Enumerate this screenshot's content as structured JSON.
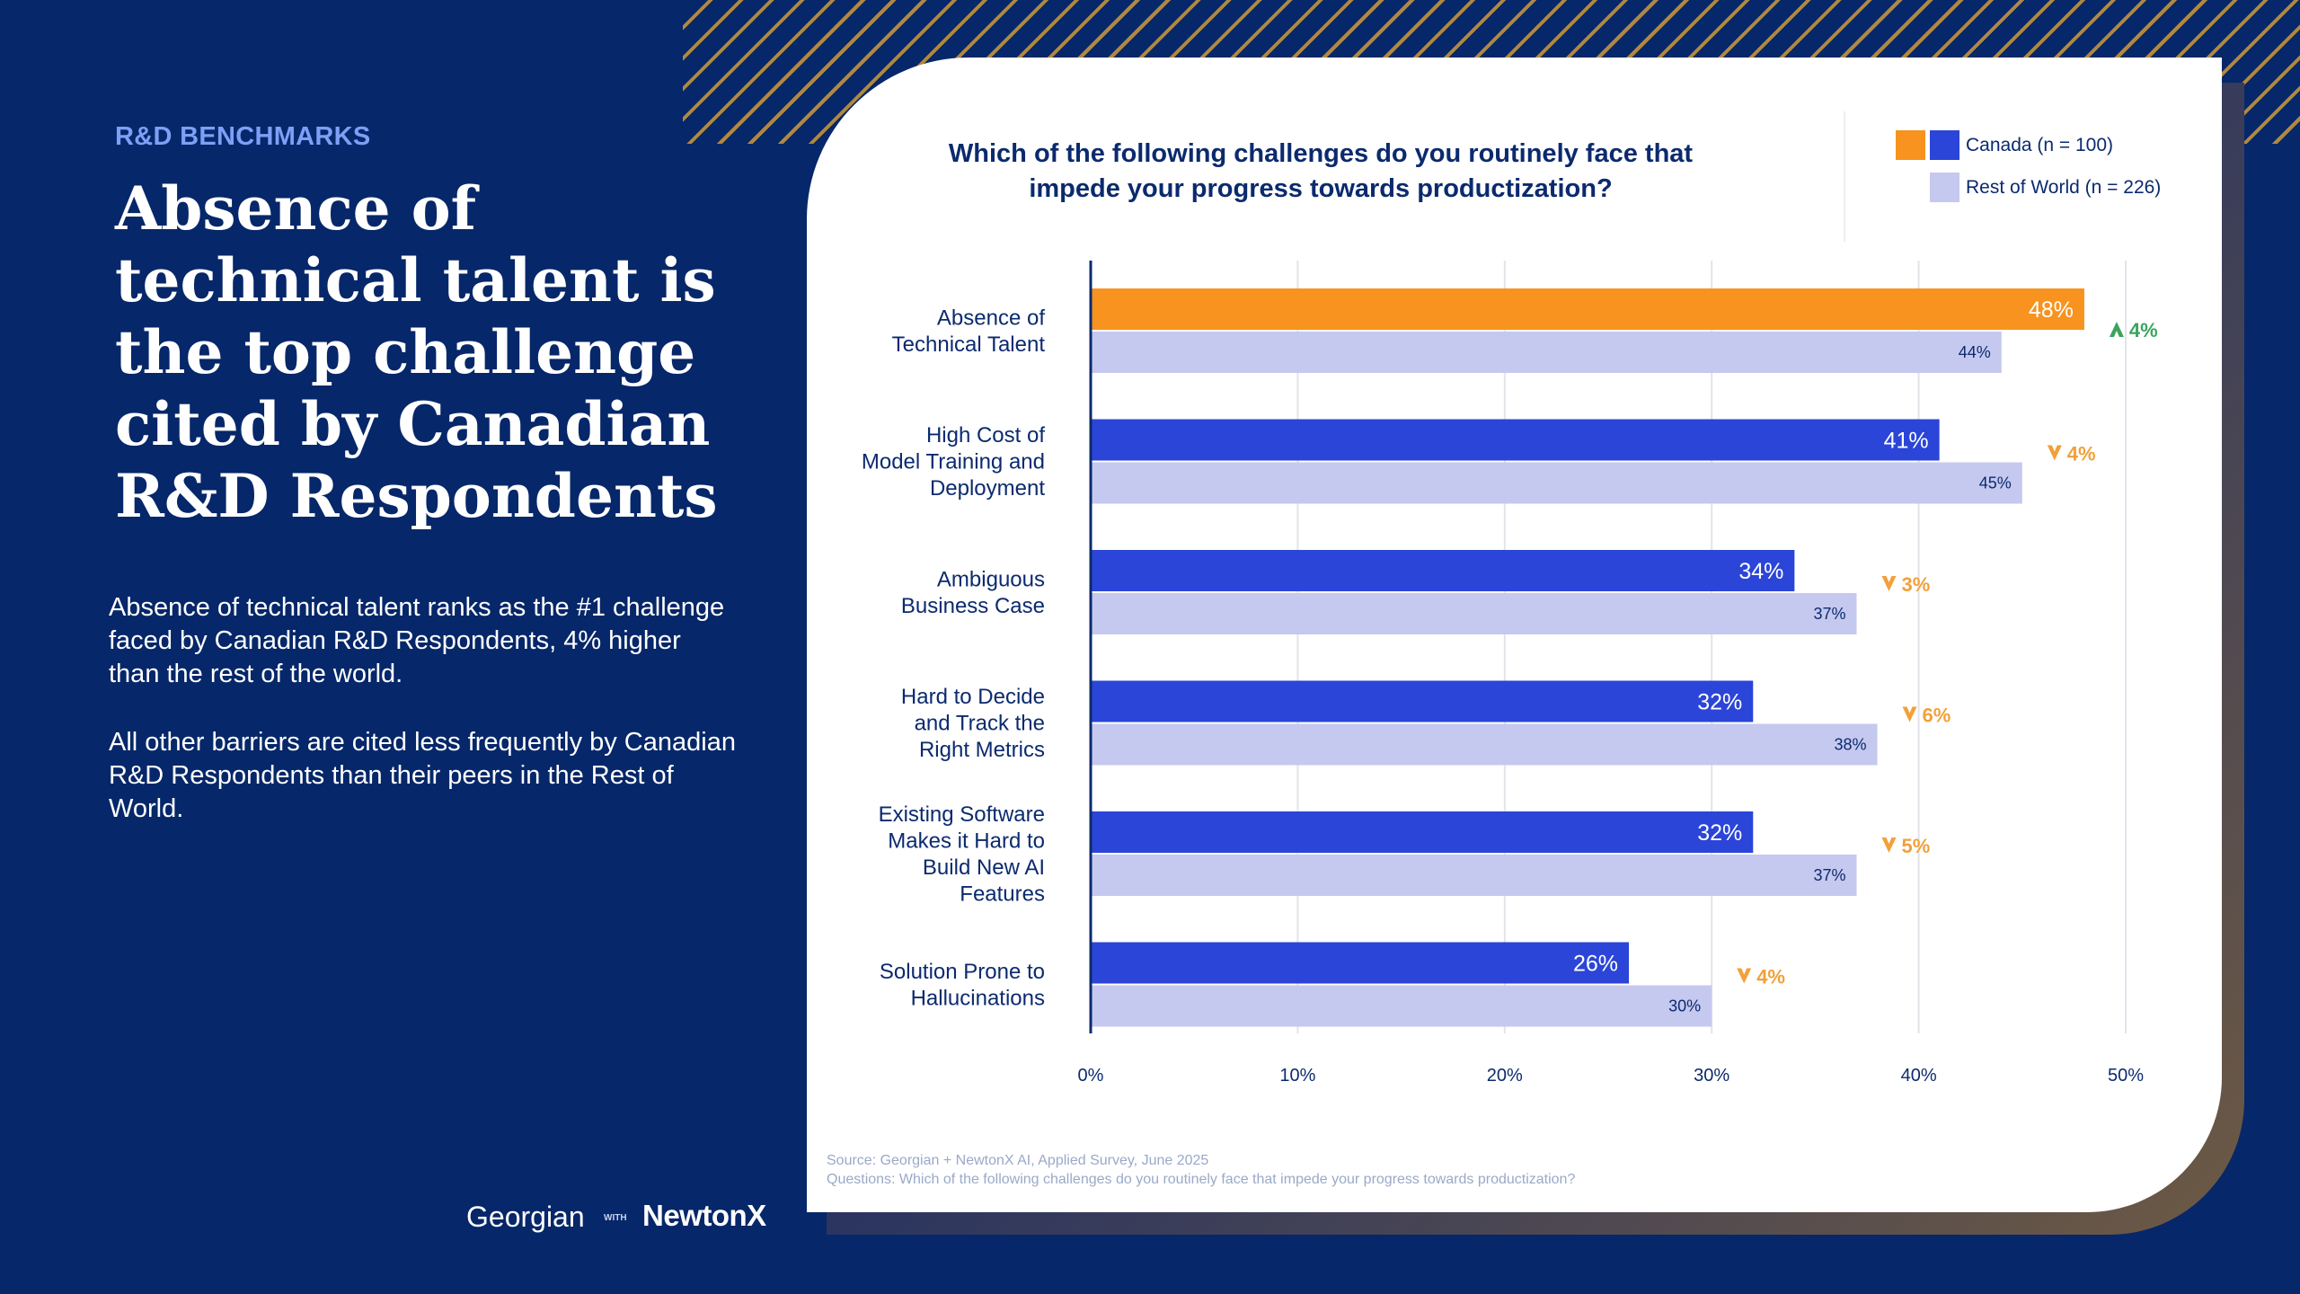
{
  "page": {
    "eyebrow": "R&D BENCHMARKS",
    "headline": "Absence of technical talent is the top challenge cited by Canadian R&D Respondents",
    "paragraph1": "Absence of technical talent ranks as the #1 challenge faced by Canadian R&D Respondents, 4% higher than the rest of the world.",
    "paragraph2": "All other barriers are cited less frequently by Canadian R&D Respondents than their peers in the Rest of World.",
    "logos": {
      "georgian": "Georgian",
      "with": "WITH",
      "newtonx": "NewtonX"
    }
  },
  "colors": {
    "background": "#062769",
    "canada_highlight": "#f7931e",
    "canada": "#2b45d8",
    "rest_of_world": "#c5c8ef",
    "increase": "#3aa45c",
    "decrease": "#f2a03a",
    "text_dark": "#0b2a6e"
  },
  "chart_data": {
    "type": "bar",
    "orientation": "horizontal",
    "title": "Which of the following challenges do you routinely face that impede your progress towards productization?",
    "categories": [
      [
        "Absence of",
        "Technical Talent"
      ],
      [
        "High Cost of",
        "Model Training and",
        "Deployment"
      ],
      [
        "Ambiguous",
        "Business Case"
      ],
      [
        "Hard to Decide",
        "and Track the",
        "Right Metrics"
      ],
      [
        "Existing Software",
        "Makes it Hard to",
        "Build New AI",
        "Features"
      ],
      [
        "Solution Prone to",
        "Hallucinations"
      ]
    ],
    "series": [
      {
        "name": "Canada (n = 100)",
        "values": [
          48,
          41,
          34,
          32,
          32,
          26
        ]
      },
      {
        "name": "Rest of World (n = 226)",
        "values": [
          44,
          45,
          37,
          38,
          37,
          30
        ]
      }
    ],
    "differences": [
      {
        "direction": "up",
        "label": "4%"
      },
      {
        "direction": "down",
        "label": "4%"
      },
      {
        "direction": "down",
        "label": "3%"
      },
      {
        "direction": "down",
        "label": "6%"
      },
      {
        "direction": "down",
        "label": "5%"
      },
      {
        "direction": "down",
        "label": "4%"
      }
    ],
    "xlim": [
      0,
      50
    ],
    "xticks": [
      0,
      10,
      20,
      30,
      40,
      50
    ],
    "tick_suffix": "%",
    "legend_position": "top-right",
    "grid": true
  },
  "source": {
    "line1": "Source: Georgian + NewtonX AI, Applied Survey, June 2025",
    "line2": "Questions: Which of the following challenges do you routinely face that impede your progress towards productization?"
  }
}
